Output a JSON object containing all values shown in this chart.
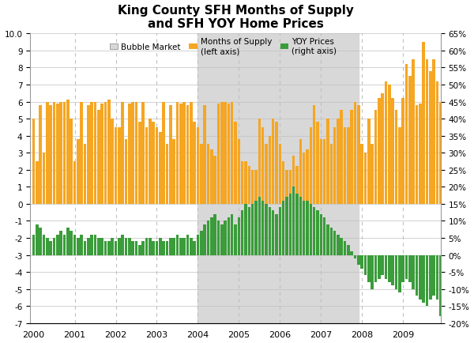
{
  "title": "King County SFH Months of Supply\nand SFH YOY Home Prices",
  "bubble_market_start": 2004.0,
  "bubble_market_end": 2007.916,
  "background_color": "#ffffff",
  "grid_color": "#c0c0c0",
  "orange_color": "#f5a623",
  "green_color": "#3a9c3a",
  "bubble_color": "#d8d8d8",
  "mos_data": [
    5.0,
    2.5,
    5.8,
    3.0,
    6.0,
    5.8,
    6.0,
    5.9,
    6.0,
    6.0,
    6.1,
    5.0,
    2.5,
    3.8,
    6.0,
    3.5,
    5.8,
    6.0,
    6.0,
    5.5,
    5.9,
    6.0,
    6.1,
    5.0,
    4.5,
    4.5,
    6.0,
    3.8,
    5.9,
    6.0,
    6.0,
    4.8,
    6.0,
    4.5,
    5.0,
    4.8,
    4.5,
    4.2,
    6.0,
    3.5,
    5.8,
    3.8,
    6.0,
    5.9,
    6.0,
    5.8,
    6.0,
    4.8,
    4.5,
    3.5,
    5.8,
    3.5,
    3.2,
    2.8,
    5.9,
    6.0,
    6.0,
    5.9,
    6.0,
    4.8,
    3.8,
    2.5,
    2.5,
    2.2,
    2.0,
    2.0,
    5.0,
    4.5,
    3.5,
    4.0,
    5.0,
    4.8,
    3.5,
    2.5,
    2.0,
    2.0,
    2.8,
    2.2,
    3.8,
    3.0,
    3.2,
    4.5,
    5.8,
    4.8,
    3.8,
    3.8,
    5.0,
    3.5,
    4.5,
    5.0,
    5.5,
    4.5,
    4.5,
    5.5,
    6.0,
    5.8,
    3.5,
    3.0,
    5.0,
    3.5,
    5.5,
    6.2,
    6.5,
    7.2,
    7.0,
    6.2,
    5.5,
    4.5,
    6.2,
    8.2,
    7.5,
    8.5,
    5.8,
    5.9,
    9.5,
    8.5,
    7.8,
    8.5,
    7.2,
    6.0
  ],
  "yoy_data": [
    0.06,
    0.09,
    0.08,
    0.06,
    0.05,
    0.04,
    0.05,
    0.06,
    0.07,
    0.06,
    0.08,
    0.07,
    0.06,
    0.05,
    0.06,
    0.04,
    0.05,
    0.06,
    0.06,
    0.05,
    0.05,
    0.04,
    0.04,
    0.05,
    0.04,
    0.05,
    0.06,
    0.05,
    0.05,
    0.04,
    0.04,
    0.03,
    0.04,
    0.05,
    0.05,
    0.04,
    0.04,
    0.05,
    0.04,
    0.04,
    0.05,
    0.05,
    0.06,
    0.05,
    0.05,
    0.06,
    0.05,
    0.04,
    0.06,
    0.07,
    0.09,
    0.1,
    0.11,
    0.12,
    0.1,
    0.09,
    0.1,
    0.11,
    0.12,
    0.09,
    0.11,
    0.13,
    0.15,
    0.14,
    0.15,
    0.16,
    0.17,
    0.16,
    0.15,
    0.14,
    0.13,
    0.12,
    0.14,
    0.16,
    0.17,
    0.18,
    0.2,
    0.18,
    0.17,
    0.16,
    0.16,
    0.15,
    0.14,
    0.13,
    0.12,
    0.11,
    0.09,
    0.08,
    0.07,
    0.06,
    0.05,
    0.04,
    0.03,
    0.01,
    -0.01,
    -0.03,
    -0.04,
    -0.06,
    -0.08,
    -0.1,
    -0.08,
    -0.07,
    -0.06,
    -0.07,
    -0.08,
    -0.09,
    -0.1,
    -0.11,
    -0.08,
    -0.07,
    -0.08,
    -0.1,
    -0.12,
    -0.13,
    -0.14,
    -0.15,
    -0.13,
    -0.12,
    -0.13,
    -0.18
  ],
  "start_year": 2000,
  "n_months": 120,
  "ylim_left": [
    -7.0,
    10.0
  ],
  "ylim_right": [
    -0.2,
    0.65
  ],
  "yticks_left": [
    -7.0,
    -6.0,
    -5.0,
    -4.0,
    -3.0,
    -2.0,
    -1.0,
    0.0,
    1.0,
    2.0,
    3.0,
    4.0,
    5.0,
    6.0,
    7.0,
    8.0,
    9.0,
    10.0
  ],
  "ytick_left_labels": [
    "-7",
    "-6",
    "-5",
    "-4",
    "-3",
    "-2",
    "-1",
    "0",
    "1",
    "2",
    "3",
    "4",
    "5",
    "6",
    "7",
    "8",
    "9",
    "10.0"
  ],
  "yticks_right_vals": [
    -0.2,
    -0.15,
    -0.1,
    -0.05,
    0.0,
    0.05,
    0.1,
    0.15,
    0.2,
    0.25,
    0.3,
    0.35,
    0.4,
    0.45,
    0.5,
    0.55,
    0.6,
    0.65
  ],
  "yticks_right_labels": [
    "-20%",
    "-15%",
    "-10%",
    "-5%",
    "0%",
    "5%",
    "10%",
    "15%",
    "20%",
    "25%",
    "30%",
    "35%",
    "40%",
    "45%",
    "50%",
    "55%",
    "60%",
    "65%"
  ],
  "xtick_years": [
    2000,
    2001,
    2002,
    2003,
    2004,
    2005,
    2006,
    2007,
    2008,
    2009
  ],
  "dashed_years": [
    2001,
    2002,
    2003,
    2004,
    2005,
    2006,
    2007,
    2008,
    2009
  ],
  "xlim": [
    1999.917,
    2009.917
  ]
}
